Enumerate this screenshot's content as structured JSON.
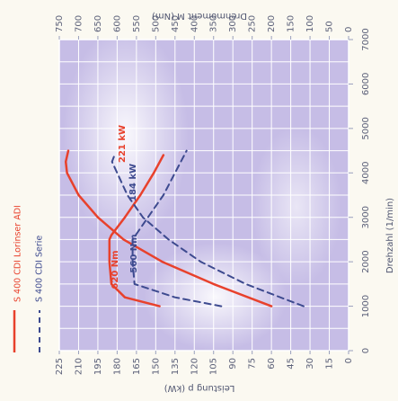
{
  "chart_data": {
    "type": "line",
    "rotation_deg": 90,
    "x_axis": {
      "title": "Drehzahl (1/min)",
      "range": [
        0,
        7000
      ],
      "ticks": [
        0,
        1000,
        2000,
        3000,
        4000,
        5000,
        6000,
        7000
      ]
    },
    "y_left": {
      "title": "Leistung p (kW)",
      "range": [
        0,
        225
      ],
      "ticks": [
        0,
        15,
        30,
        45,
        60,
        75,
        90,
        105,
        120,
        135,
        150,
        165,
        180,
        195,
        210,
        225
      ]
    },
    "y_right": {
      "title": "Drehmoment M (Nm)",
      "range": [
        0,
        750
      ],
      "ticks": [
        0,
        50,
        100,
        150,
        200,
        250,
        300,
        350,
        400,
        450,
        500,
        550,
        600,
        650,
        700,
        750
      ]
    },
    "grid": true,
    "legend_position": "left",
    "series": [
      {
        "name": "S 400 CDI Lorinser ADI",
        "color": "#e8412c",
        "dash": "solid",
        "power_kw": {
          "x": [
            1000,
            1500,
            2000,
            2500,
            3000,
            3500,
            4000,
            4250,
            4500
          ],
          "y": [
            60,
            105,
            145,
            175,
            195,
            210,
            219,
            220,
            218
          ]
        },
        "torque_nm": {
          "x": [
            1000,
            1200,
            1500,
            2000,
            2500,
            2600,
            3000,
            3500,
            4000,
            4400
          ],
          "y": [
            490,
            580,
            615,
            620,
            620,
            615,
            580,
            540,
            505,
            480
          ]
        }
      },
      {
        "name": "S 400 CDI Serie",
        "color": "#3d4a8f",
        "dash": "dashed",
        "power_kw": {
          "x": [
            1000,
            1500,
            2000,
            2500,
            3000,
            3500,
            4000,
            4250,
            4400
          ],
          "y": [
            35,
            80,
            115,
            140,
            160,
            172,
            180,
            184,
            182
          ]
        },
        "torque_nm": {
          "x": [
            1000,
            1200,
            1500,
            2000,
            2500,
            3000,
            3500,
            4000,
            4500
          ],
          "y": [
            330,
            450,
            555,
            560,
            560,
            520,
            480,
            450,
            420
          ]
        }
      }
    ],
    "annotations": [
      {
        "text": "221 kW",
        "series": 0
      },
      {
        "text": "184 kW",
        "series": 1
      },
      {
        "text": "620 Nm",
        "series": 0
      },
      {
        "text": "560 Nm",
        "series": 1
      }
    ]
  }
}
